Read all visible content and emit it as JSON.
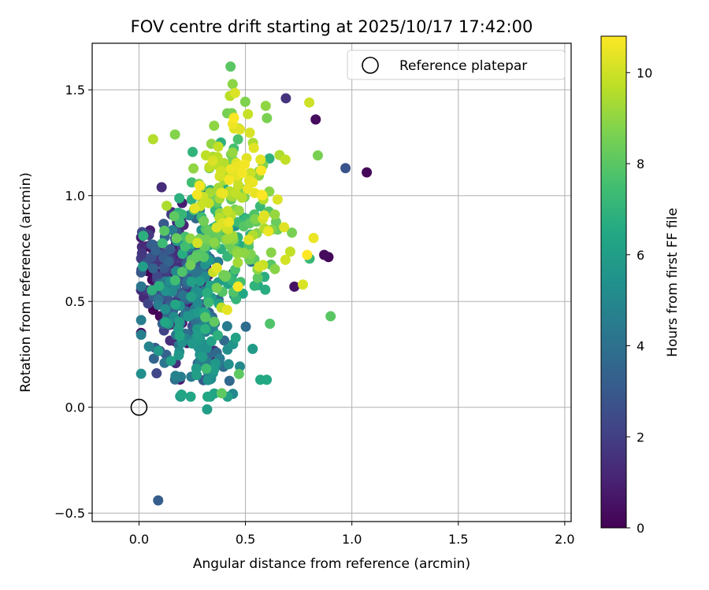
{
  "chart_data": {
    "type": "scatter",
    "title": "FOV centre drift starting at 2025/10/17 17:42:00",
    "xlabel": "Angular distance from reference (arcmin)",
    "ylabel": "Rotation from reference (arcmin)",
    "xlim": [
      -0.22,
      2.03
    ],
    "ylim": [
      -0.54,
      1.72
    ],
    "xticks": [
      0.0,
      0.5,
      1.0,
      1.5,
      2.0
    ],
    "xtick_labels": [
      "0.0",
      "0.5",
      "1.0",
      "1.5",
      "2.0"
    ],
    "yticks": [
      -0.5,
      0.0,
      0.5,
      1.0,
      1.5
    ],
    "ytick_labels": [
      "−0.5",
      "0.0",
      "0.5",
      "1.0",
      "1.5"
    ],
    "grid": true,
    "colormap": "viridis",
    "colorbar": {
      "label": "Hours from first FF file",
      "range": [
        0,
        10.8
      ],
      "ticks": [
        0,
        2,
        4,
        6,
        8,
        10
      ],
      "tick_labels": [
        "0",
        "2",
        "4",
        "6",
        "8",
        "10"
      ]
    },
    "legend": {
      "position": "upper right",
      "entries": [
        {
          "label": "Reference platepar",
          "marker": "open-circle"
        }
      ]
    },
    "reference_point": {
      "x": 0.0,
      "y": 0.0
    },
    "series": [
      {
        "name": "FOV centre drift",
        "hours_range": [
          0,
          10.8
        ]
      }
    ],
    "anchor_points": [
      {
        "x": 0.09,
        "y": -0.44,
        "hours": 3.2
      },
      {
        "x": 0.97,
        "y": 1.13,
        "hours": 2.8
      },
      {
        "x": 1.07,
        "y": 1.11,
        "hours": 0.2
      },
      {
        "x": 0.83,
        "y": 1.36,
        "hours": 0.3
      },
      {
        "x": 0.69,
        "y": 1.46,
        "hours": 1.6
      },
      {
        "x": 0.87,
        "y": 0.72,
        "hours": 0.3
      },
      {
        "x": 0.89,
        "y": 0.71,
        "hours": 0.2
      },
      {
        "x": 0.9,
        "y": 0.43,
        "hours": 8.0
      },
      {
        "x": 0.43,
        "y": 1.61,
        "hours": 8.0
      },
      {
        "x": 0.32,
        "y": -0.01,
        "hours": 6.0
      },
      {
        "x": 0.57,
        "y": 0.13,
        "hours": 6.5
      },
      {
        "x": 0.6,
        "y": 0.13,
        "hours": 6.5
      },
      {
        "x": 0.02,
        "y": 0.81,
        "hours": 6.8
      },
      {
        "x": 0.07,
        "y": 0.23,
        "hours": 3.5
      },
      {
        "x": 0.12,
        "y": 0.21,
        "hours": 4.2
      },
      {
        "x": 0.2,
        "y": 0.06,
        "hours": 6.3
      },
      {
        "x": 0.82,
        "y": 0.8,
        "hours": 10.5
      },
      {
        "x": 0.79,
        "y": 0.72,
        "hours": 10.8
      },
      {
        "x": 0.77,
        "y": 0.58,
        "hours": 10.2
      },
      {
        "x": 0.8,
        "y": 1.44,
        "hours": 10.0
      },
      {
        "x": 0.84,
        "y": 1.19,
        "hours": 8.6
      },
      {
        "x": 0.73,
        "y": 0.57,
        "hours": 0.5
      }
    ]
  }
}
